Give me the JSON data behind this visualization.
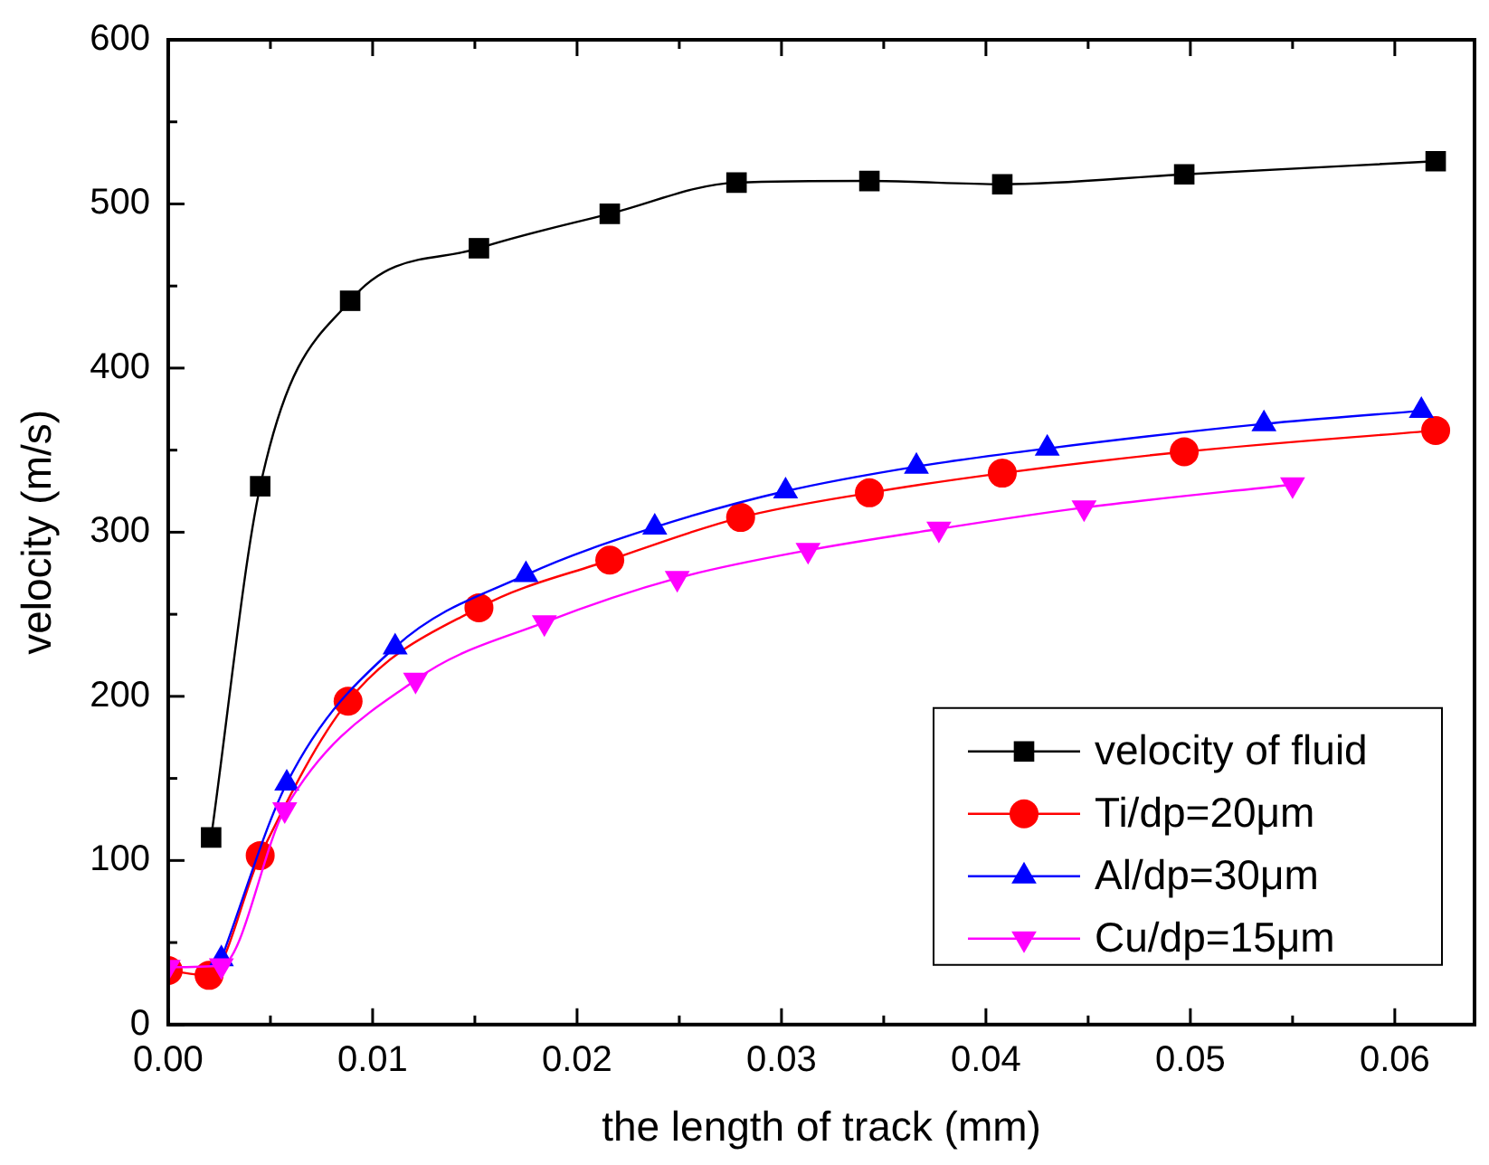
{
  "chart_data": {
    "type": "line",
    "xlabel": "the length of track (mm)",
    "ylabel": "velocity (m/s)",
    "xlim": [
      0,
      0.0639
    ],
    "ylim": [
      0,
      600
    ],
    "xticks": [
      {
        "value": 0,
        "label": "0.00"
      },
      {
        "value": 0.005,
        "label": null
      },
      {
        "value": 0.01,
        "label": "0.01"
      },
      {
        "value": 0.015,
        "label": null
      },
      {
        "value": 0.02,
        "label": "0.02"
      },
      {
        "value": 0.025,
        "label": null
      },
      {
        "value": 0.03,
        "label": "0.03"
      },
      {
        "value": 0.035,
        "label": null
      },
      {
        "value": 0.04,
        "label": "0.04"
      },
      {
        "value": 0.045,
        "label": null
      },
      {
        "value": 0.05,
        "label": "0.05"
      },
      {
        "value": 0.055,
        "label": null
      },
      {
        "value": 0.06,
        "label": "0.06"
      }
    ],
    "yticks": [
      0,
      {
        "value": 50,
        "label": null
      },
      100,
      {
        "value": 150,
        "label": null
      },
      200,
      {
        "value": 250,
        "label": null
      },
      300,
      {
        "value": 350,
        "label": null
      },
      400,
      {
        "value": 450,
        "label": null
      },
      500,
      {
        "value": 550,
        "label": null
      },
      600
    ],
    "grid": false,
    "legend": "bottom right",
    "line_style": "solid",
    "series": [
      {
        "name": "velocity of fluid",
        "color": "#000000",
        "marker": "square",
        "x": [
          0.0021,
          0.0045,
          0.0089,
          0.0152,
          0.0216,
          0.0278,
          0.0343,
          0.0408,
          0.0497,
          0.062
        ],
        "values": [
          114,
          328,
          441,
          473,
          494,
          513,
          514,
          512,
          518,
          526
        ]
      },
      {
        "name": "Ti/dp=20μm",
        "color": "#ff0000",
        "marker": "circle",
        "x": [
          0,
          0.002,
          0.0045,
          0.0088,
          0.0152,
          0.0216,
          0.028,
          0.0343,
          0.0408,
          0.0497,
          0.062
        ],
        "values": [
          33,
          30,
          103,
          197,
          254,
          283,
          309,
          324,
          336,
          349,
          362
        ]
      },
      {
        "name": "Al/dp=30μm",
        "color": "#0000ff",
        "marker": "triangle",
        "x": [
          0.0026,
          0.0058,
          0.0111,
          0.0175,
          0.0238,
          0.0302,
          0.0366,
          0.043,
          0.0536,
          0.0613
        ],
        "values": [
          40,
          147,
          230,
          274,
          303,
          325,
          340,
          351,
          366,
          374
        ]
      },
      {
        "name": "Cu/dp=15μm",
        "color": "#ff00ff",
        "marker": "triangle-down",
        "x": [
          0,
          0.0026,
          0.0057,
          0.0121,
          0.0184,
          0.0249,
          0.0313,
          0.0377,
          0.0448,
          0.055
        ],
        "values": [
          35,
          36,
          131,
          210,
          245,
          272,
          289,
          302,
          315,
          329
        ]
      }
    ]
  }
}
